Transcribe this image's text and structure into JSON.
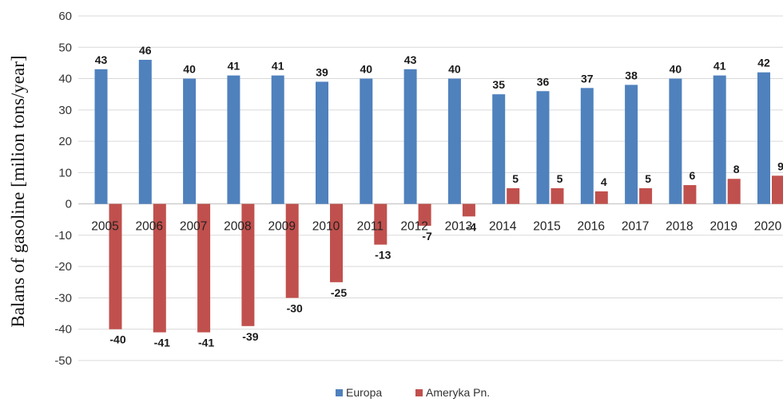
{
  "chart_data": {
    "type": "bar",
    "ylabel": "Balans of gasoline [milion tons/year]",
    "ylim": [
      -50,
      60
    ],
    "yticks": [
      60,
      50,
      40,
      30,
      20,
      10,
      0,
      -10,
      -20,
      -30,
      -40,
      -50
    ],
    "grid": true,
    "legend_position": "bottom-center",
    "categories": [
      "2005",
      "2006",
      "2007",
      "2008",
      "2009",
      "2010",
      "2011",
      "2012",
      "2013",
      "2014",
      "2015",
      "2016",
      "2017",
      "2018",
      "2019",
      "2020"
    ],
    "series": [
      {
        "name": "Europa",
        "color": "#4f81bd",
        "values": [
          43,
          46,
          40,
          41,
          41,
          39,
          40,
          43,
          40,
          35,
          36,
          37,
          38,
          40,
          41,
          42
        ]
      },
      {
        "name": "Ameryka Pn.",
        "color": "#c0504d",
        "values": [
          -40,
          -41,
          -41,
          -39,
          -30,
          -25,
          -13,
          -7,
          -4,
          5,
          5,
          4,
          5,
          6,
          8,
          9
        ]
      }
    ]
  }
}
